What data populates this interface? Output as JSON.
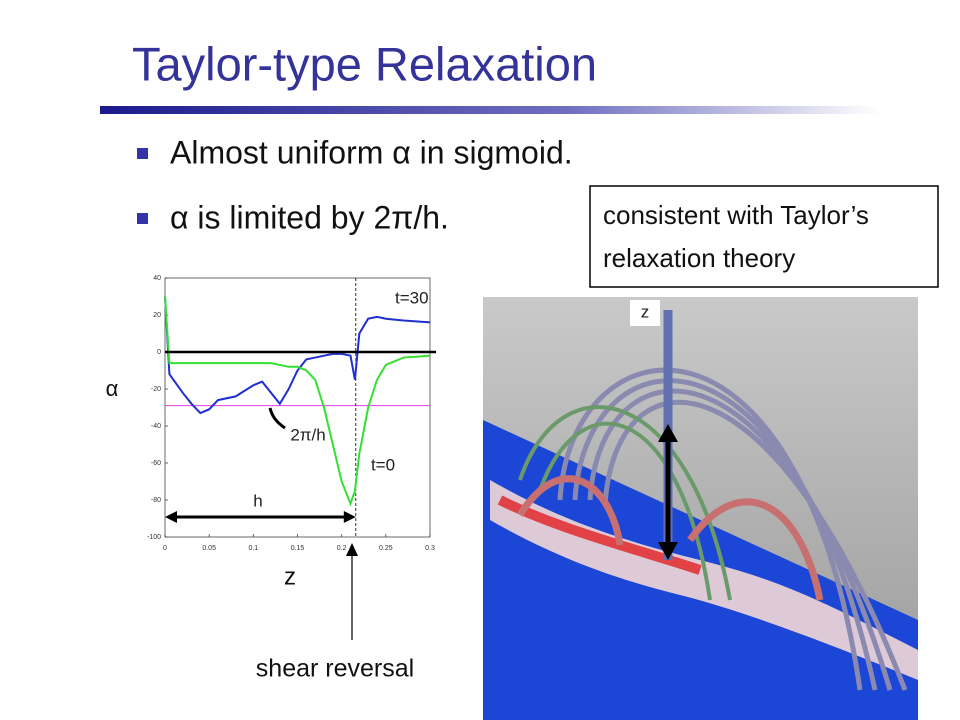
{
  "title": "Taylor-type Relaxation",
  "bullets": [
    "Almost uniform α in sigmoid.",
    "α is limited by 2π/h."
  ],
  "callout": [
    "consistent with Taylor’s",
    "relaxation theory"
  ],
  "shear_reversal": "shear reversal",
  "image_axis_label": "z",
  "chart_data": {
    "type": "line",
    "ylabel": "α",
    "xlabel": "z",
    "annotations": [
      "t=30",
      "t=0",
      "2π/h",
      "h"
    ],
    "x": [
      0,
      0.005,
      0.02,
      0.03,
      0.04,
      0.05,
      0.06,
      0.08,
      0.1,
      0.11,
      0.12,
      0.13,
      0.14,
      0.15,
      0.16,
      0.17,
      0.18,
      0.19,
      0.2,
      0.21,
      0.215,
      0.22,
      0.23,
      0.24,
      0.25,
      0.27,
      0.3
    ],
    "series": [
      {
        "name": "t=30",
        "color": "#1f2fd0",
        "values": [
          30,
          -12,
          -22,
          -28,
          -33,
          -31,
          -26,
          -24,
          -18,
          -16,
          -22,
          -28,
          -20,
          -10,
          -4,
          -3,
          -2,
          -1,
          -1,
          -2,
          -15,
          10,
          18,
          19,
          18,
          17,
          16
        ]
      },
      {
        "name": "t=0",
        "color": "#33e033",
        "values": [
          30,
          -6,
          -6,
          -6,
          -6,
          -6,
          -6,
          -6,
          -6,
          -6,
          -6,
          -7,
          -8,
          -8,
          -10,
          -15,
          -30,
          -50,
          -70,
          -82,
          -75,
          -55,
          -30,
          -15,
          -7,
          -3,
          -2
        ]
      }
    ],
    "zero_line": 0,
    "limit_line": -29,
    "reversal_x": 0.216,
    "xlim": [
      0,
      0.3
    ],
    "ylim": [
      -100,
      40
    ],
    "xticks": [
      0,
      0.05,
      0.1,
      0.15,
      0.2,
      0.25,
      0.3
    ],
    "yticks": [
      -100,
      -80,
      -60,
      -40,
      -20,
      0,
      20,
      40
    ]
  }
}
